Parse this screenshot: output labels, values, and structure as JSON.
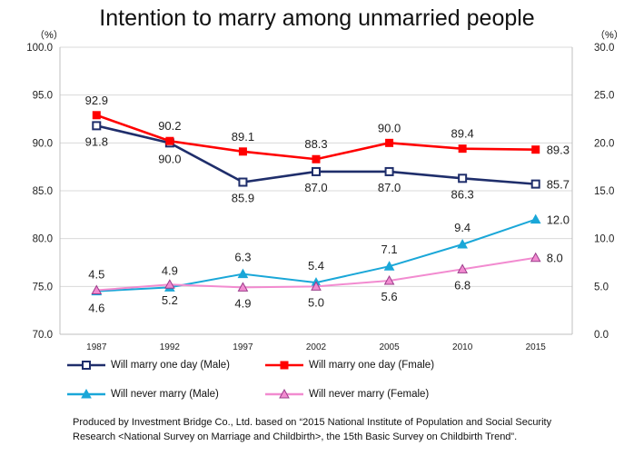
{
  "chart_data": {
    "type": "line",
    "title": "Intention to marry among unmarried people",
    "left_unit": "（%）",
    "right_unit": "（%）",
    "categories": [
      "1987",
      "1992",
      "1997",
      "2002",
      "2005",
      "2010",
      "2015"
    ],
    "left_axis": {
      "ylim": [
        70.0,
        100.0
      ],
      "ticks": [
        "70.0",
        "75.0",
        "80.0",
        "85.0",
        "90.0",
        "95.0",
        "100.0"
      ]
    },
    "right_axis": {
      "ylim": [
        0.0,
        30.0
      ],
      "ticks": [
        "0.0",
        "5.0",
        "10.0",
        "15.0",
        "20.0",
        "25.0",
        "30.0"
      ]
    },
    "grid": "horizontal",
    "legend_position": "bottom",
    "series": [
      {
        "name": "Will marry one day (Male)",
        "axis": "left",
        "color": "#1f2e6b",
        "marker": "square-hollow",
        "values": [
          91.8,
          90.0,
          85.9,
          87.0,
          87.0,
          86.3,
          85.7
        ],
        "labels": [
          "91.8",
          "90.0",
          "85.9",
          "87.0",
          "87.0",
          "86.3",
          "85.7"
        ]
      },
      {
        "name": "Will marry one day (Fmale)",
        "axis": "left",
        "color": "#ff0000",
        "marker": "square-filled",
        "values": [
          92.9,
          90.2,
          89.1,
          88.3,
          90.0,
          89.4,
          89.3
        ],
        "labels": [
          "92.9",
          "90.2",
          "89.1",
          "88.3",
          "90.0",
          "89.4",
          "89.3"
        ]
      },
      {
        "name": "Will never marry (Male)",
        "axis": "right",
        "color": "#1aa7d8",
        "marker": "triangle",
        "values": [
          4.5,
          4.9,
          6.3,
          5.4,
          7.1,
          9.4,
          12.0
        ],
        "labels": [
          "4.5",
          "4.9",
          "6.3",
          "5.4",
          "7.1",
          "9.4",
          "12.0"
        ]
      },
      {
        "name": "Will never marry (Female)",
        "axis": "right",
        "color": "#f28bd0",
        "marker": "triangle",
        "values": [
          4.6,
          5.2,
          4.9,
          5.0,
          5.6,
          6.8,
          8.0
        ],
        "labels": [
          "4.6",
          "5.2",
          "4.9",
          "5.0",
          "5.6",
          "6.8",
          "8.0"
        ]
      }
    ],
    "source_line_1": "Produced by Investment Bridge Co., Ltd. based on “2015 National Institute of Population and Social Security",
    "source_line_2": "Research <National Survey on Marriage and Childbirth>, the 15th Basic Survey on Childbirth Trend”."
  }
}
